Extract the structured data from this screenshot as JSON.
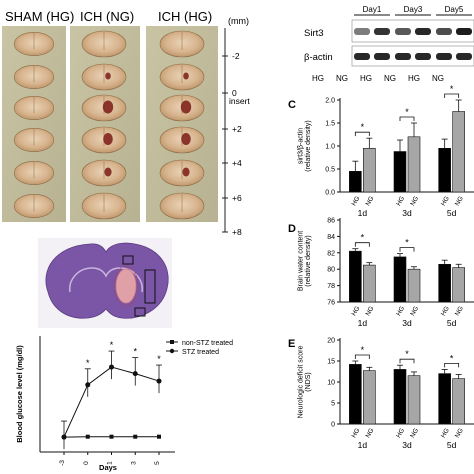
{
  "brains": {
    "groups": [
      "SHAM (HG)",
      "ICH (NG)",
      "ICH (HG)"
    ],
    "scale_unit": "(mm)",
    "scale_ticks": [
      "-2",
      "0",
      "+2",
      "+4",
      "+6",
      "+8"
    ],
    "insert_label": "insert"
  },
  "western": {
    "days": [
      "Day1",
      "Day3",
      "Day5"
    ],
    "rows": [
      "Sirt3",
      "β-actin"
    ],
    "lane_labels": [
      "HG",
      "NG",
      "HG",
      "NG",
      "HG",
      "NG"
    ]
  },
  "colors": {
    "hg": "#000000",
    "ng": "#a6a6a6",
    "stain": "#7b55a6",
    "lesion": "#e0a0a8",
    "roi": "#111111"
  },
  "chart_data": [
    {
      "panel": "C",
      "type": "bar",
      "categories": [
        "1d",
        "3d",
        "5d"
      ],
      "series": [
        {
          "name": "HG",
          "values": [
            0.45,
            0.88,
            0.95
          ],
          "err": [
            0.22,
            0.25,
            0.2
          ]
        },
        {
          "name": "NG",
          "values": [
            0.95,
            1.2,
            1.75
          ],
          "err": [
            0.22,
            0.3,
            0.25
          ]
        }
      ],
      "ylabel": "sirt3/β-actin (relative density)",
      "ylim": [
        0,
        2.0
      ],
      "yticks": [
        "0.0",
        "0.5",
        "1.0",
        "1.5",
        "2.0"
      ],
      "sig": [
        "*",
        "*",
        "*"
      ]
    },
    {
      "panel": "D",
      "type": "bar",
      "categories": [
        "1d",
        "3d",
        "5d"
      ],
      "series": [
        {
          "name": "HG",
          "values": [
            82.2,
            81.5,
            80.6
          ],
          "err": [
            0.3,
            0.4,
            0.5
          ]
        },
        {
          "name": "NG",
          "values": [
            80.5,
            80.0,
            80.2
          ],
          "err": [
            0.3,
            0.3,
            0.4
          ]
        }
      ],
      "ylabel": "Brain water content (relative density)",
      "ylim": [
        76,
        86
      ],
      "yticks": [
        "76",
        "78",
        "80",
        "82",
        "84",
        "86"
      ],
      "sig": [
        "*",
        "*",
        ""
      ]
    },
    {
      "panel": "E",
      "type": "bar",
      "categories": [
        "1d",
        "3d",
        "5d"
      ],
      "series": [
        {
          "name": "HG",
          "values": [
            14.2,
            13.0,
            12.0
          ],
          "err": [
            0.8,
            1.0,
            1.0
          ]
        },
        {
          "name": "NG",
          "values": [
            12.7,
            11.5,
            10.8
          ],
          "err": [
            0.8,
            0.9,
            1.0
          ]
        }
      ],
      "ylabel": "Neurologic deficit score (NDS)",
      "ylim": [
        0,
        20
      ],
      "yticks": [
        "0",
        "5",
        "10",
        "15",
        "20"
      ],
      "sig": [
        "*",
        "*",
        "*"
      ]
    },
    {
      "panel": "glucose",
      "type": "line",
      "x": [
        "-3",
        "0",
        "1",
        "3",
        "5"
      ],
      "series": [
        {
          "name": "non-STZ treated",
          "values": [
            80,
            82,
            82,
            82,
            82
          ]
        },
        {
          "name": "STZ treated",
          "values": [
            80,
            360,
            455,
            420,
            380
          ]
        }
      ],
      "ylabel": "Blood glucose level (mg/dl)",
      "xlabel": "Days",
      "ylim": [
        0,
        600
      ],
      "sig": [
        "",
        "*",
        "*",
        "*",
        "*"
      ]
    }
  ]
}
